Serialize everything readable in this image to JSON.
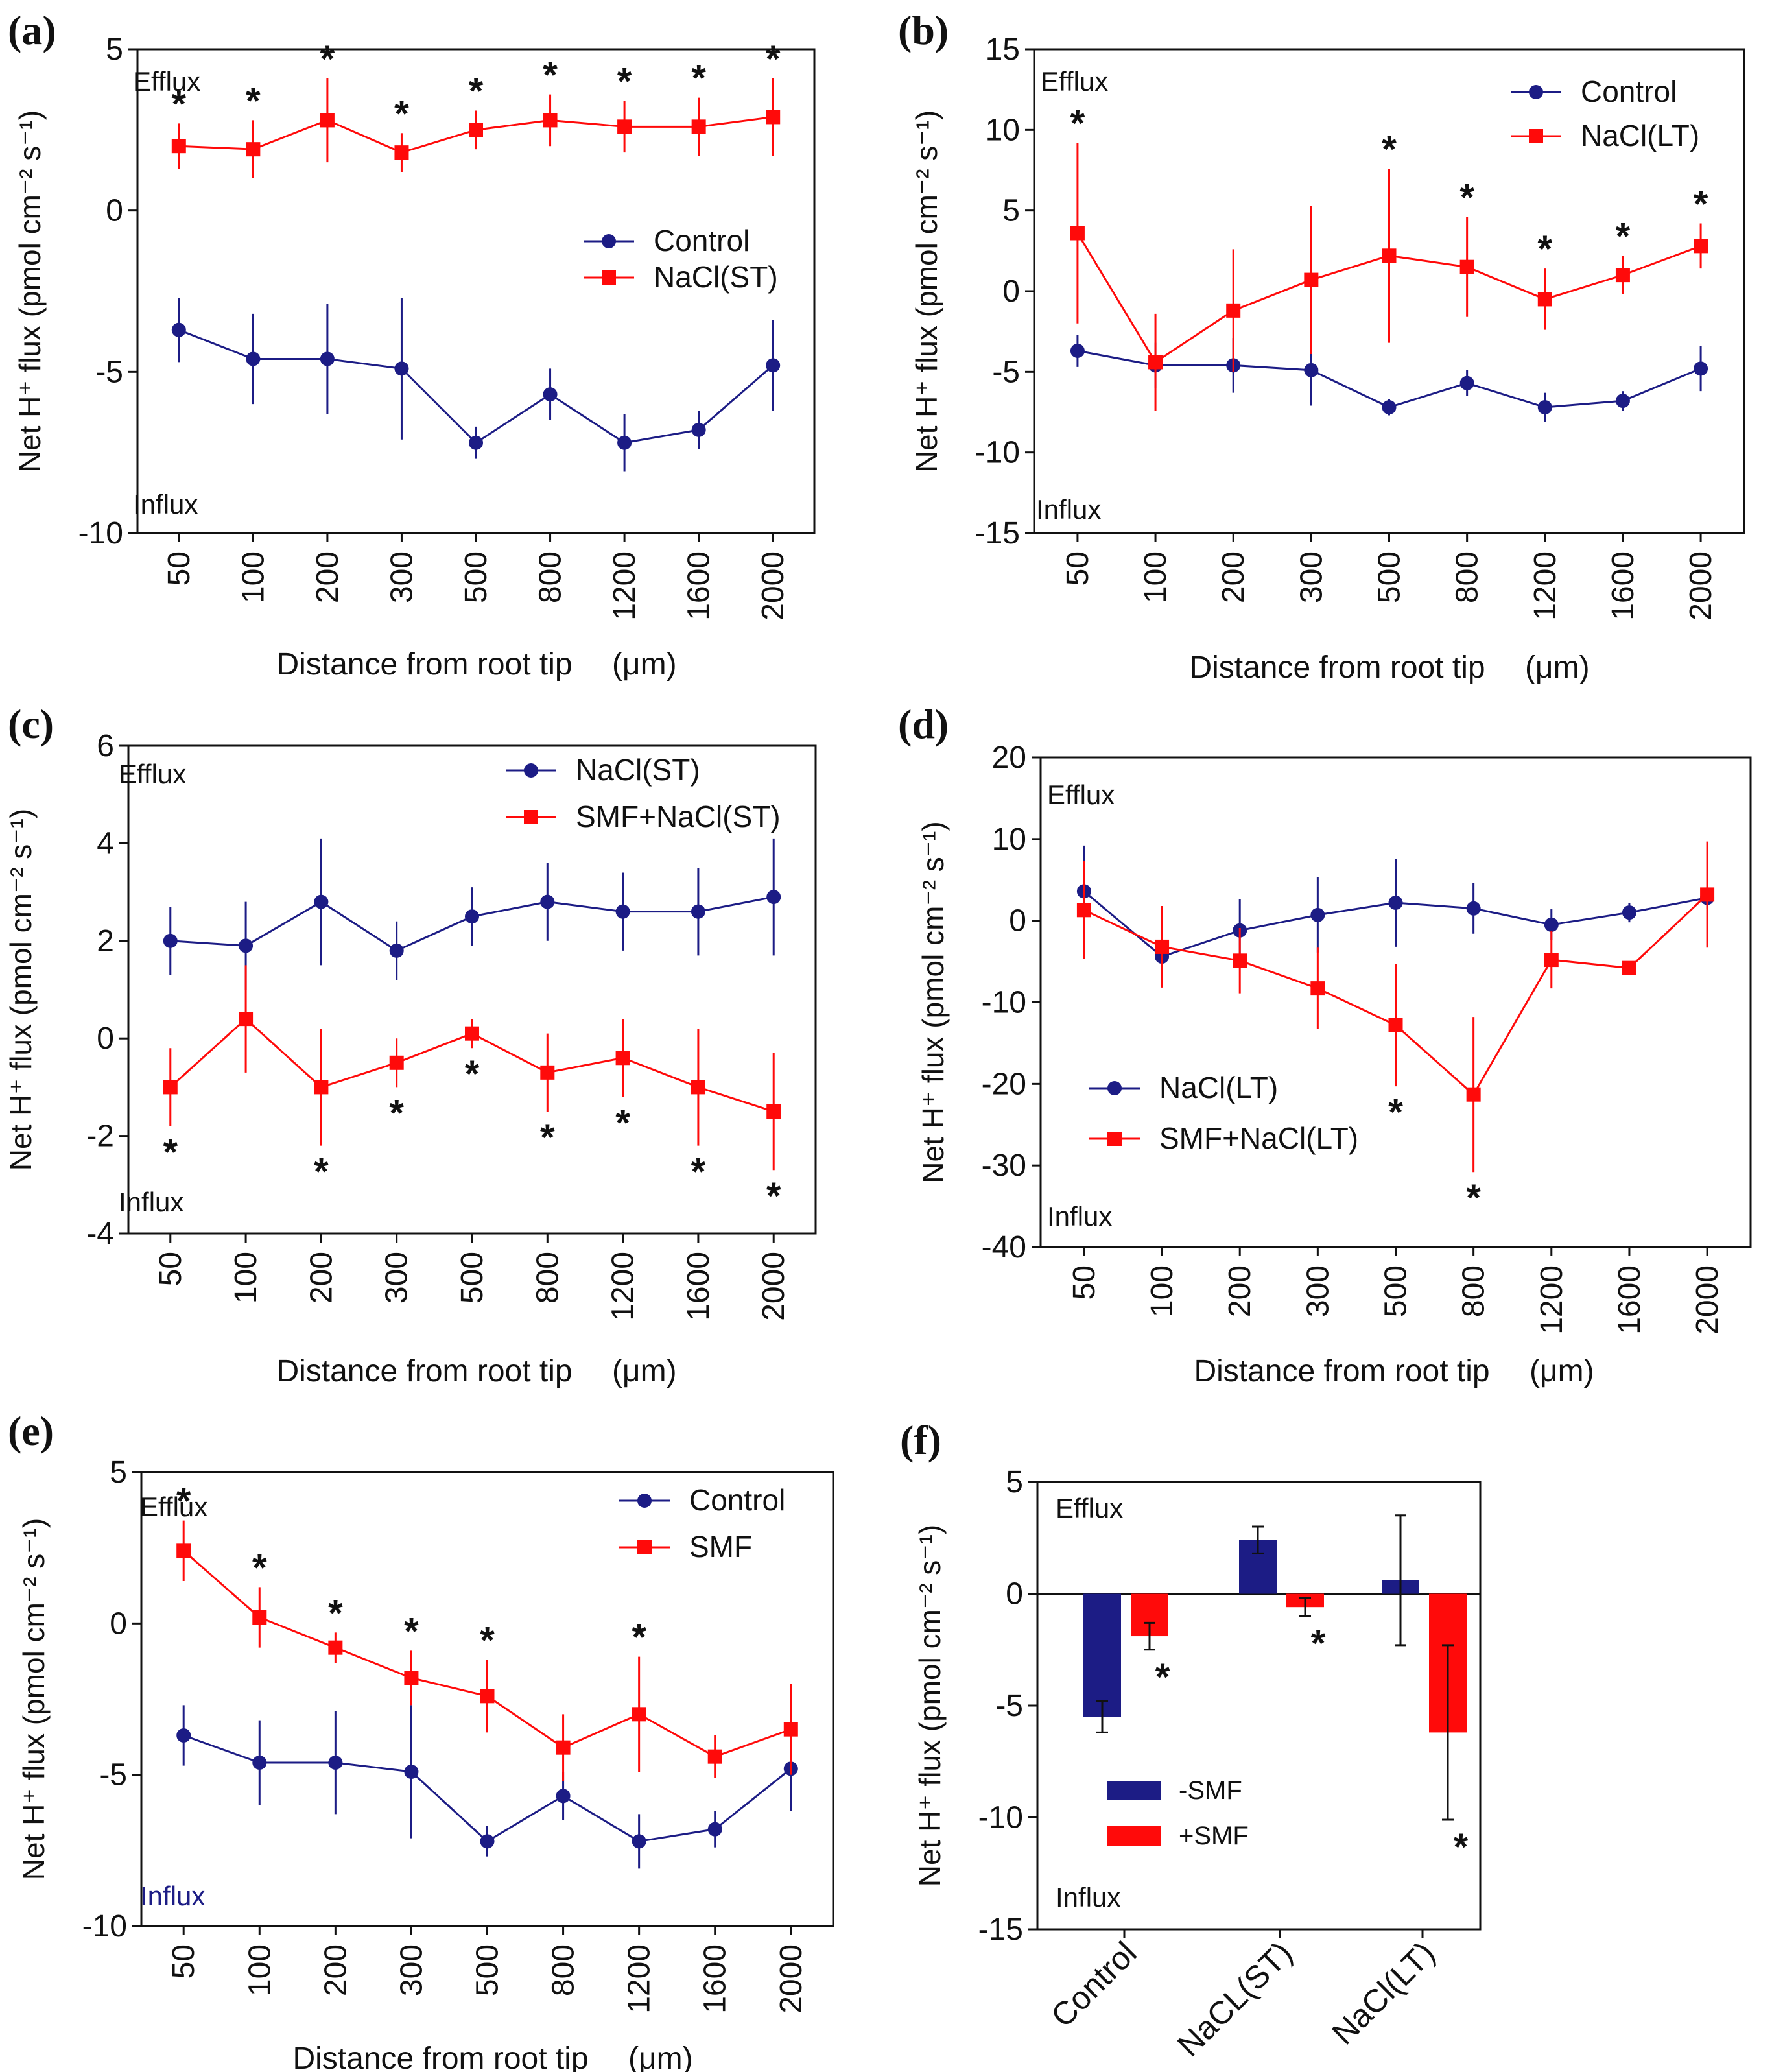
{
  "colors": {
    "control": "#1c1c85",
    "treatment": "#ff0a0a",
    "axis": "#111111"
  },
  "chart_data": [
    {
      "id": "a",
      "panel_label": "a",
      "type": "line",
      "x": [
        50,
        100,
        200,
        300,
        500,
        800,
        1200,
        1600,
        2000
      ],
      "xlabel": "Distance from root tip 　(μm)",
      "ylabel": "Net H⁺ flux (pmol cm⁻² s⁻¹)",
      "ylim": [
        -10,
        5
      ],
      "yticks": [
        -10,
        -5,
        0,
        5
      ],
      "region_labels": {
        "top": "Efflux",
        "bottom": "Influx"
      },
      "legend": "right-middle",
      "series": [
        {
          "name": "Control",
          "marker": "circle",
          "color": "#1c1c85",
          "values": [
            -3.7,
            -4.6,
            -4.6,
            -4.9,
            -7.2,
            -5.7,
            -7.2,
            -6.8,
            -4.8
          ],
          "errors": [
            1.0,
            1.4,
            1.7,
            2.2,
            0.5,
            0.8,
            0.9,
            0.6,
            1.4
          ],
          "stars": []
        },
        {
          "name": "NaCl(ST)",
          "marker": "square",
          "color": "#ff0a0a",
          "values": [
            2.0,
            1.9,
            2.8,
            1.8,
            2.5,
            2.8,
            2.6,
            2.6,
            2.9
          ],
          "errors": [
            0.7,
            0.9,
            1.3,
            0.6,
            0.6,
            0.8,
            0.8,
            0.9,
            1.2
          ],
          "stars": [
            1,
            1,
            1,
            1,
            1,
            1,
            1,
            1,
            1
          ]
        }
      ]
    },
    {
      "id": "b",
      "panel_label": "b",
      "type": "line",
      "x": [
        50,
        100,
        200,
        300,
        500,
        800,
        1200,
        1600,
        2000
      ],
      "xlabel": "Distance from root tip 　(μm)",
      "ylabel": "Net H⁺ flux (pmol cm⁻² s⁻¹)",
      "ylim": [
        -15,
        15
      ],
      "yticks": [
        -15,
        -10,
        -5,
        0,
        5,
        10,
        15
      ],
      "region_labels": {
        "top": "Efflux",
        "bottom": "Influx"
      },
      "legend": "top-right",
      "series": [
        {
          "name": "Control",
          "marker": "circle",
          "color": "#1c1c85",
          "values": [
            -3.7,
            -4.6,
            -4.6,
            -4.9,
            -7.2,
            -5.7,
            -7.2,
            -6.8,
            -4.8
          ],
          "errors": [
            1.0,
            1.4,
            1.7,
            2.2,
            0.5,
            0.8,
            0.9,
            0.6,
            1.4
          ],
          "stars": []
        },
        {
          "name": "NaCl(LT)",
          "marker": "square",
          "color": "#ff0a0a",
          "values": [
            3.6,
            -4.4,
            -1.2,
            0.7,
            2.2,
            1.5,
            -0.5,
            1.0,
            2.8
          ],
          "errors": [
            5.6,
            3.0,
            3.8,
            4.6,
            5.4,
            3.1,
            1.9,
            1.2,
            1.4
          ],
          "stars": [
            1,
            0,
            0,
            0,
            1,
            1,
            1,
            1,
            1
          ]
        }
      ]
    },
    {
      "id": "c",
      "panel_label": "c",
      "type": "line",
      "x": [
        50,
        100,
        200,
        300,
        500,
        800,
        1200,
        1600,
        2000
      ],
      "xlabel": "Distance from root tip 　(μm)",
      "ylabel": "Net H⁺ flux (pmol cm⁻² s⁻¹)",
      "ylim": [
        -4,
        6
      ],
      "yticks": [
        -4,
        -2,
        0,
        2,
        4,
        6
      ],
      "region_labels": {
        "top": "Efflux",
        "bottom": "Influx"
      },
      "legend": "top-right",
      "series": [
        {
          "name": "NaCl(ST)",
          "marker": "circle",
          "color": "#1c1c85",
          "values": [
            2.0,
            1.9,
            2.8,
            1.8,
            2.5,
            2.8,
            2.6,
            2.6,
            2.9
          ],
          "errors": [
            0.7,
            0.9,
            1.3,
            0.6,
            0.6,
            0.8,
            0.8,
            0.9,
            1.2
          ],
          "stars": []
        },
        {
          "name": "SMF+NaCl(ST)",
          "marker": "square",
          "color": "#ff0a0a",
          "values": [
            -1.0,
            0.4,
            -1.0,
            -0.5,
            0.1,
            -0.7,
            -0.4,
            -1.0,
            -1.5
          ],
          "errors": [
            0.8,
            1.1,
            1.2,
            0.5,
            0.3,
            0.8,
            0.8,
            1.2,
            1.2
          ],
          "stars": [
            -1,
            0,
            -1,
            -1,
            -1,
            -1,
            -1,
            -1,
            -1
          ]
        }
      ]
    },
    {
      "id": "d",
      "panel_label": "d",
      "type": "line",
      "x": [
        50,
        100,
        200,
        300,
        500,
        800,
        1200,
        1600,
        2000
      ],
      "xlabel": "Distance from root tip 　(μm)",
      "ylabel": "Net H⁺ flux (pmol cm⁻² s⁻¹)",
      "ylim": [
        -40,
        20
      ],
      "yticks": [
        -40,
        -30,
        -20,
        -10,
        0,
        10,
        20
      ],
      "region_labels": {
        "top": "Efflux",
        "bottom": "Influx"
      },
      "legend": "lower-left",
      "series": [
        {
          "name": "NaCl(LT)",
          "marker": "circle",
          "color": "#1c1c85",
          "values": [
            3.6,
            -4.4,
            -1.2,
            0.7,
            2.2,
            1.5,
            -0.5,
            1.0,
            2.8
          ],
          "errors": [
            5.6,
            3.0,
            3.8,
            4.6,
            5.4,
            3.1,
            1.9,
            1.2,
            1.4
          ],
          "stars": []
        },
        {
          "name": "SMF+NaCl(LT)",
          "marker": "square",
          "color": "#ff0a0a",
          "values": [
            1.3,
            -3.2,
            -4.9,
            -8.3,
            -12.8,
            -21.3,
            -4.8,
            -5.8,
            3.2
          ],
          "errors": [
            6.0,
            5.0,
            4.0,
            5.0,
            7.5,
            9.5,
            3.5,
            0.8,
            6.5
          ],
          "stars": [
            0,
            0,
            0,
            0,
            -1,
            -1,
            0,
            0,
            0
          ]
        }
      ]
    },
    {
      "id": "e",
      "panel_label": "e",
      "type": "line",
      "x": [
        50,
        100,
        200,
        300,
        500,
        800,
        1200,
        1600,
        2000
      ],
      "xlabel": "Distance from root tip 　(μm)",
      "ylabel": "Net H⁺ flux (pmol cm⁻² s⁻¹)",
      "ylim": [
        -10,
        5
      ],
      "yticks": [
        -10,
        -5,
        0,
        5
      ],
      "region_labels": {
        "top": "Efflux",
        "bottom": "Influx"
      },
      "legend": "top-right",
      "series": [
        {
          "name": "Control",
          "marker": "circle",
          "color": "#1c1c85",
          "values": [
            -3.7,
            -4.6,
            -4.6,
            -4.9,
            -7.2,
            -5.7,
            -7.2,
            -6.8,
            -4.8
          ],
          "errors": [
            1.0,
            1.4,
            1.7,
            2.2,
            0.5,
            0.8,
            0.9,
            0.6,
            1.4
          ],
          "stars": []
        },
        {
          "name": "SMF",
          "marker": "square",
          "color": "#ff0a0a",
          "values": [
            2.4,
            0.2,
            -0.8,
            -1.8,
            -2.4,
            -4.1,
            -3.0,
            -4.4,
            -3.5
          ],
          "errors": [
            1.0,
            1.0,
            0.5,
            0.9,
            1.2,
            1.1,
            1.9,
            0.7,
            1.5
          ],
          "stars": [
            1,
            1,
            1,
            1,
            1,
            0,
            1,
            0,
            0
          ]
        }
      ]
    },
    {
      "id": "f",
      "panel_label": "f",
      "type": "bar",
      "categories": [
        "Control",
        "NaCL(ST)",
        "NaCl(LT)"
      ],
      "ylabel": "Net H⁺ flux (pmol cm⁻² s⁻¹)",
      "ylim": [
        -15,
        5
      ],
      "yticks": [
        -15,
        -10,
        -5,
        0,
        5
      ],
      "region_labels": {
        "top": "Efflux",
        "bottom": "Influx"
      },
      "legend": "lower-left",
      "series": [
        {
          "name": "-SMF",
          "color": "#1c1c85",
          "values": [
            -5.5,
            2.4,
            0.6
          ],
          "errors": [
            0.7,
            0.6,
            2.9
          ],
          "stars": [
            0,
            0,
            0
          ]
        },
        {
          "name": "+SMF",
          "color": "#ff0a0a",
          "values": [
            -1.9,
            -0.6,
            -6.2
          ],
          "errors": [
            0.6,
            0.4,
            3.9
          ],
          "stars": [
            -1,
            -1,
            -1
          ]
        }
      ]
    }
  ]
}
